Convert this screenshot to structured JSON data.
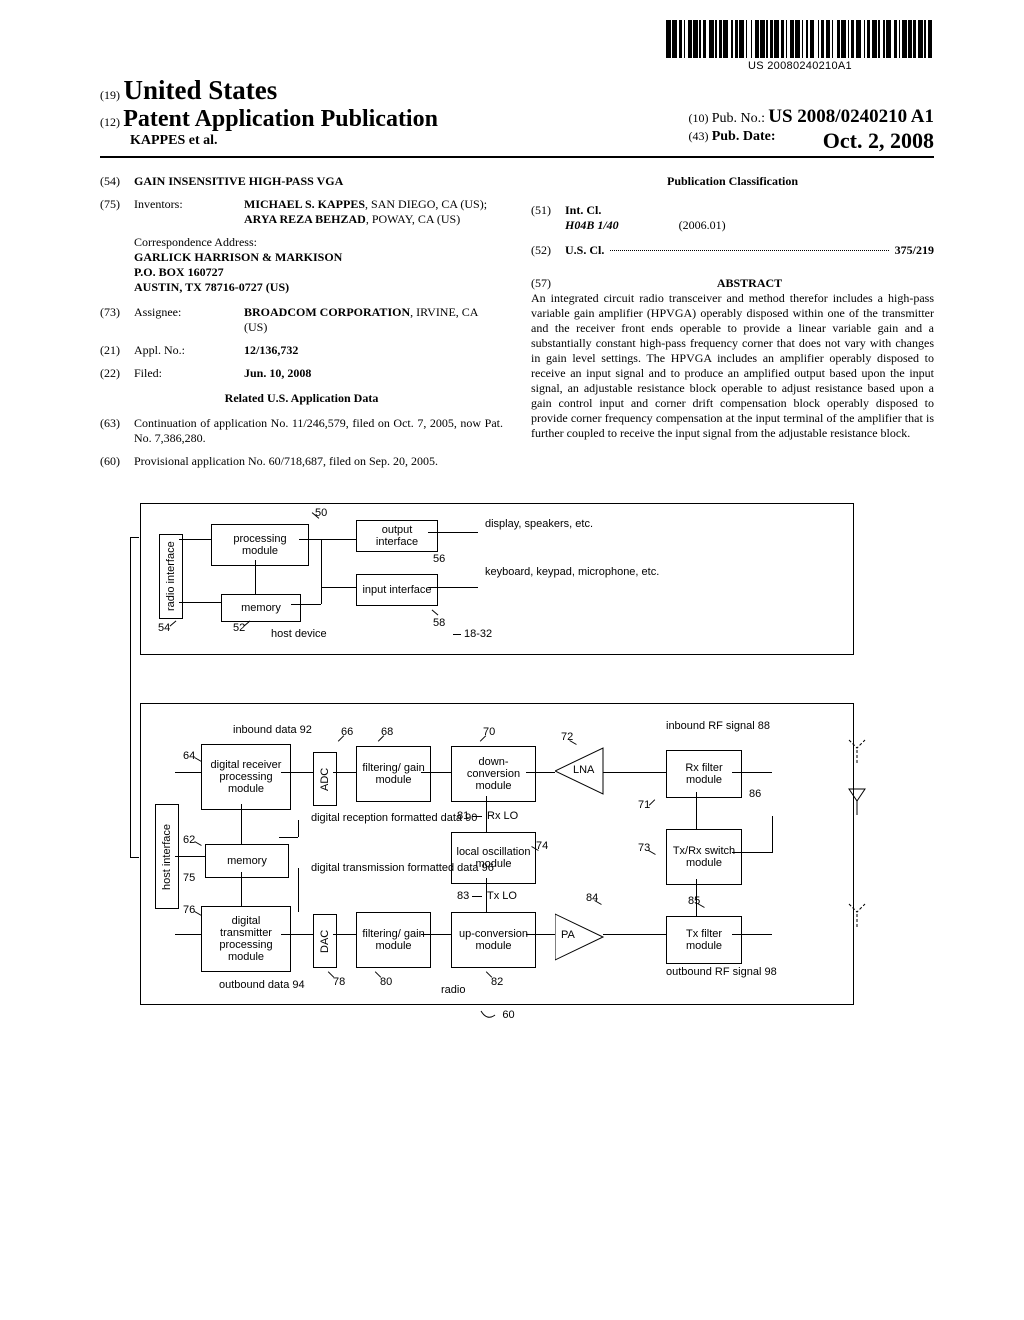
{
  "barcode_number": "US 20080240210A1",
  "barcode_bars": [
    3,
    1,
    3,
    1,
    2,
    1,
    1,
    2,
    2,
    1,
    3,
    1,
    1,
    1,
    2,
    2,
    3,
    1,
    1,
    1,
    2,
    1,
    3,
    2,
    1,
    1,
    2,
    1,
    3,
    1,
    1,
    2,
    1,
    2,
    2,
    1,
    3,
    1,
    1,
    1,
    2,
    1,
    3,
    1,
    2,
    1,
    1,
    2,
    2,
    1,
    3,
    1,
    1,
    2,
    1,
    1,
    3,
    2,
    1,
    1,
    2,
    1,
    3,
    1,
    1,
    2,
    2,
    1,
    3,
    1,
    1,
    1,
    2,
    1,
    3,
    2,
    1,
    1,
    2,
    1,
    3,
    1,
    1,
    2,
    1,
    1,
    3,
    2,
    2,
    1,
    1,
    1,
    3,
    1,
    2,
    1,
    2,
    1,
    3,
    1,
    1,
    1,
    3,
    1
  ],
  "header": {
    "country_code": "(19)",
    "country": "United States",
    "pub_code": "(12)",
    "pub_type": "Patent Application Publication",
    "authors": "KAPPES et al.",
    "pubno_code": "(10)",
    "pubno_label": "Pub. No.:",
    "pubno": "US 2008/0240210 A1",
    "pubdate_code": "(43)",
    "pubdate_label": "Pub. Date:",
    "pubdate": "Oct. 2, 2008"
  },
  "left": {
    "title_code": "(54)",
    "title": "GAIN INSENSITIVE HIGH-PASS VGA",
    "inventors_code": "(75)",
    "inventors_label": "Inventors:",
    "inventors_val": "<b>MICHAEL S. KAPPES</b>, SAN DIEGO, CA (US); <b>ARYA REZA BEHZAD</b>, POWAY, CA (US)",
    "corr_label": "Correspondence Address:",
    "corr_line1": "GARLICK HARRISON & MARKISON",
    "corr_line2": "P.O. BOX 160727",
    "corr_line3": "AUSTIN, TX 78716-0727 (US)",
    "assignee_code": "(73)",
    "assignee_label": "Assignee:",
    "assignee_val": "<b>BROADCOM CORPORATION</b>, IRVINE, CA (US)",
    "applno_code": "(21)",
    "applno_label": "Appl. No.:",
    "applno_val": "12/136,732",
    "filed_code": "(22)",
    "filed_label": "Filed:",
    "filed_val": "Jun. 10, 2008",
    "related_hdr": "Related U.S. Application Data",
    "cont_code": "(63)",
    "cont_val": "Continuation of application No. 11/246,579, filed on Oct. 7, 2005, now Pat. No. 7,386,280.",
    "prov_code": "(60)",
    "prov_val": "Provisional application No. 60/718,687, filed on Sep. 20, 2005."
  },
  "right": {
    "pc_hdr": "Publication Classification",
    "intcl_code": "(51)",
    "intcl_label": "Int. Cl.",
    "intcl_class": "H04B 1/40",
    "intcl_date": "(2006.01)",
    "uscl_code": "(52)",
    "uscl_label": "U.S. Cl.",
    "uscl_val": "375/219",
    "abs_code": "(57)",
    "abs_hdr": "ABSTRACT",
    "abs_text": "An integrated circuit radio transceiver and method therefor includes a high-pass variable gain amplifier (HPVGA) operably disposed within one of the transmitter and the receiver front ends operable to provide a linear variable gain and a substantially constant high-pass frequency corner that does not vary with changes in gain level settings. The HPVGA includes an amplifier operably disposed to receive an input signal and to produce an amplified output based upon the input signal, an adjustable resistance block operable to adjust resistance based upon a gain control input and corner drift compensation block operably disposed to provide corner frequency compensation at the input terminal of the amplifier that is further coupled to receive the input signal from the adjustable resistance block."
  },
  "fig1": {
    "radio_interface": "radio interface",
    "processing_module": "processing module",
    "memory": "memory",
    "output_interface": "output interface",
    "input_interface": "input interface",
    "display": "display, speakers, etc.",
    "keyboard": "keyboard, keypad, microphone, etc.",
    "host_device": "host device",
    "n50": "50",
    "n54": "54",
    "n52": "52",
    "n56": "56",
    "n58": "58",
    "n1832": "18-32"
  },
  "fig2": {
    "inbound_data": "inbound data 92",
    "digital_rx": "digital receiver processing module",
    "adc": "ADC",
    "filt_gain_rx": "filtering/ gain module",
    "down_conv": "down-conversion module",
    "lna": "LNA",
    "inbound_rf": "inbound RF signal 88",
    "rx_filter": "Rx filter module",
    "host_interface": "host interface",
    "memory": "memory",
    "digital_reception": "digital reception formatted data 90",
    "digital_transmission": "digital transmission formatted data 96",
    "local_osc": "local oscillation module",
    "rxlo": "Rx LO",
    "txlo": "Tx LO",
    "txrx_switch": "Tx/Rx switch module",
    "digital_tx": "digital transmitter processing module",
    "dac": "DAC",
    "filt_gain_tx": "filtering/ gain module",
    "up_conv": "up-conversion module",
    "pa": "PA",
    "tx_filter": "Tx filter module",
    "outbound_data": "outbound data 94",
    "outbound_rf": "outbound RF signal 98",
    "radio": "radio",
    "n64": "64",
    "n62": "62",
    "n75": "75",
    "n76": "76",
    "n66": "66",
    "n68": "68",
    "n70": "70",
    "n72": "72",
    "n71": "71",
    "n86": "86",
    "n73": "73",
    "n74": "74",
    "n81": "81",
    "n83": "83",
    "n84": "84",
    "n85": "85",
    "n78": "78",
    "n80": "80",
    "n82": "82",
    "n60": "60"
  },
  "colors": {
    "fg": "#000000",
    "bg": "#ffffff"
  }
}
